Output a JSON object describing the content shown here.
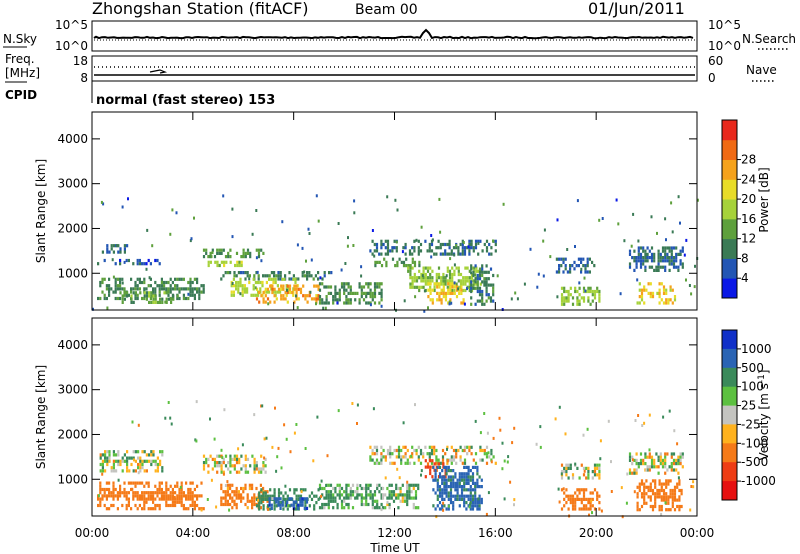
{
  "header": {
    "title": "Zhongshan Station (fitACF)",
    "beam": "Beam 00",
    "date": "01/Jun/2011"
  },
  "aux_panels": {
    "sky_label": "N.Sky",
    "sky_top": "10^5",
    "sky_bottom": "10^0",
    "search_label": "N.Search",
    "search_top": "10^5",
    "search_bottom": "10^0",
    "freq_label_1": "Freq.",
    "freq_label_2": "[MHz]",
    "freq_top": "18",
    "freq_bottom": "8",
    "nave_label": "Nave",
    "nave_top": "60",
    "nave_bottom": "0",
    "cpid_label": "CPID",
    "cpid_text": "normal (fast stereo) 153"
  },
  "chart_data": [
    {
      "type": "heatmap",
      "name": "power",
      "ylabel": "Slant Range [km]",
      "xlabel": "",
      "ylim": [
        180,
        4600
      ],
      "yticks": [
        "1000",
        "2000",
        "3000",
        "4000"
      ],
      "colorbar": {
        "label": "Power [dB]",
        "ticks": [
          "4",
          "8",
          "12",
          "16",
          "20",
          "24",
          "28"
        ],
        "colors": [
          "#0a18e6",
          "#2356b4",
          "#3a7a55",
          "#5ea03c",
          "#a6d23a",
          "#e8dc28",
          "#f5a21c",
          "#f06a14",
          "#e8281c"
        ]
      },
      "patches": [
        {
          "t0": 0.3,
          "t1": 1.4,
          "r0": 1450,
          "r1": 1650,
          "v": 9
        },
        {
          "t0": 0.2,
          "t1": 2.8,
          "r0": 1150,
          "r1": 1320,
          "v": 6
        },
        {
          "t0": 0.2,
          "t1": 4.5,
          "r0": 420,
          "r1": 900,
          "v": 11
        },
        {
          "t0": 1.0,
          "t1": 3.5,
          "r0": 300,
          "r1": 600,
          "v": 14
        },
        {
          "t0": 4.4,
          "t1": 6.9,
          "r0": 1300,
          "r1": 1550,
          "v": 12
        },
        {
          "t0": 4.5,
          "t1": 6.0,
          "r0": 1120,
          "r1": 1280,
          "v": 18
        },
        {
          "t0": 5.0,
          "t1": 9.5,
          "r0": 800,
          "r1": 1050,
          "v": 10
        },
        {
          "t0": 5.5,
          "t1": 8.2,
          "r0": 500,
          "r1": 900,
          "v": 19
        },
        {
          "t0": 6.5,
          "t1": 9.0,
          "r0": 300,
          "r1": 750,
          "v": 26
        },
        {
          "t0": 9.0,
          "t1": 11.5,
          "r0": 300,
          "r1": 800,
          "v": 12
        },
        {
          "t0": 11.0,
          "t1": 16.1,
          "r0": 1400,
          "r1": 1750,
          "v": 9
        },
        {
          "t0": 11.2,
          "t1": 13.0,
          "r0": 1150,
          "r1": 1350,
          "v": 13
        },
        {
          "t0": 12.5,
          "t1": 15.5,
          "r0": 600,
          "r1": 1150,
          "v": 17
        },
        {
          "t0": 13.3,
          "t1": 14.8,
          "r0": 300,
          "r1": 800,
          "v": 23
        },
        {
          "t0": 15.0,
          "t1": 16.0,
          "r0": 300,
          "r1": 1200,
          "v": 10
        },
        {
          "t0": 18.4,
          "t1": 20.0,
          "r0": 1000,
          "r1": 1350,
          "v": 7
        },
        {
          "t0": 18.6,
          "t1": 20.2,
          "r0": 300,
          "r1": 700,
          "v": 16
        },
        {
          "t0": 21.3,
          "t1": 23.5,
          "r0": 1000,
          "r1": 1600,
          "v": 8
        },
        {
          "t0": 21.6,
          "t1": 23.2,
          "r0": 300,
          "r1": 800,
          "v": 22
        }
      ]
    },
    {
      "type": "heatmap",
      "name": "velocity",
      "ylabel": "Slant Range [km]",
      "xlabel": "Time UT",
      "ylim": [
        180,
        4600
      ],
      "yticks": [
        "1000",
        "2000",
        "3000",
        "4000"
      ],
      "xticks": [
        "00:00",
        "04:00",
        "08:00",
        "12:00",
        "16:00",
        "20:00",
        "00:00"
      ],
      "xlim_hours": [
        0,
        24
      ],
      "colorbar": {
        "label": "Velocity [m s",
        "label_sup": "-1",
        "label_end": "]",
        "ticks": [
          "1000",
          "500",
          "100",
          "25",
          "-25",
          "-100",
          "-500",
          "-1000"
        ],
        "colors": [
          "#1030c8",
          "#2a64b4",
          "#3a8a5a",
          "#5cc040",
          "#c4c4c0",
          "#ffb21e",
          "#f57a18",
          "#ee3c14",
          "#e61010"
        ]
      },
      "patches": [
        {
          "t0": 0.3,
          "t1": 2.8,
          "r0": 1150,
          "r1": 1650,
          "v": 40
        },
        {
          "t0": 0.2,
          "t1": 4.5,
          "r0": 300,
          "r1": 950,
          "v": -300
        },
        {
          "t0": 4.4,
          "t1": 6.9,
          "r0": 1150,
          "r1": 1550,
          "v": 0
        },
        {
          "t0": 5.0,
          "t1": 7.0,
          "r0": 300,
          "r1": 900,
          "v": -200
        },
        {
          "t0": 6.5,
          "t1": 9.0,
          "r0": 300,
          "r1": 800,
          "v": 300
        },
        {
          "t0": 7.0,
          "t1": 8.6,
          "r0": 300,
          "r1": 600,
          "v": 900
        },
        {
          "t0": 9.0,
          "t1": 11.5,
          "r0": 300,
          "r1": 900,
          "v": 150
        },
        {
          "t0": 11.0,
          "t1": 16.1,
          "r0": 1300,
          "r1": 1750,
          "v": 0
        },
        {
          "t0": 11.5,
          "t1": 13.0,
          "r0": 300,
          "r1": 900,
          "v": 100
        },
        {
          "t0": 13.2,
          "t1": 14.2,
          "r0": 1000,
          "r1": 1450,
          "v": -600
        },
        {
          "t0": 13.5,
          "t1": 15.5,
          "r0": 300,
          "r1": 1300,
          "v": 600
        },
        {
          "t0": 18.6,
          "t1": 20.2,
          "r0": 1000,
          "r1": 1350,
          "v": 0
        },
        {
          "t0": 18.6,
          "t1": 20.2,
          "r0": 300,
          "r1": 800,
          "v": -300
        },
        {
          "t0": 21.3,
          "t1": 23.5,
          "r0": 1100,
          "r1": 1600,
          "v": 0
        },
        {
          "t0": 21.6,
          "t1": 23.4,
          "r0": 300,
          "r1": 1000,
          "v": -250
        }
      ]
    }
  ],
  "colors": {
    "axis": "#000000",
    "background": "#ffffff"
  }
}
